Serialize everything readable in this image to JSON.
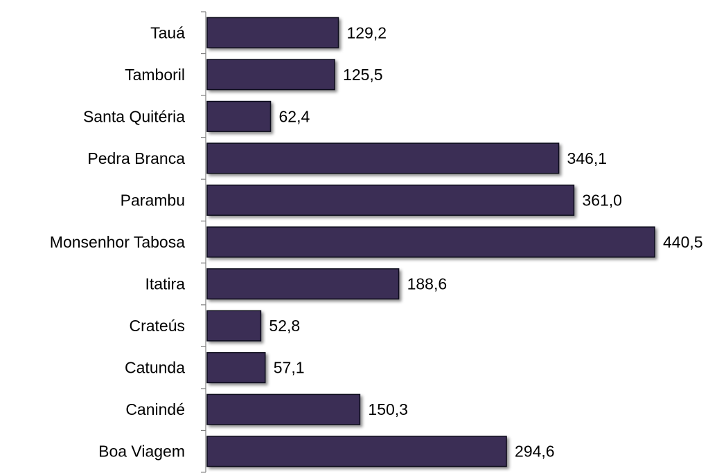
{
  "chart_data": {
    "type": "bar",
    "orientation": "horizontal",
    "categories": [
      "Tauá",
      "Tamboril",
      "Santa Quitéria",
      "Pedra Branca",
      "Parambu",
      "Monsenhor Tabosa",
      "Itatira",
      "Crateús",
      "Catunda",
      "Canindé",
      "Boa Viagem"
    ],
    "values": [
      129.2,
      125.5,
      62.4,
      346.1,
      361.0,
      440.5,
      188.6,
      52.8,
      57.1,
      150.3,
      294.6
    ],
    "value_labels": [
      "129,2",
      "125,5",
      "62,4",
      "346,1",
      "361,0",
      "440,5",
      "188,6",
      "52,8",
      "57,1",
      "150,3",
      "294,6"
    ],
    "title": "",
    "xlabel": "",
    "ylabel": "",
    "xlim": [
      0,
      440.5
    ],
    "grid": false,
    "legend": "none",
    "bar_color": "#3b2f55",
    "bar_edge_color": "#0d0a1a"
  }
}
